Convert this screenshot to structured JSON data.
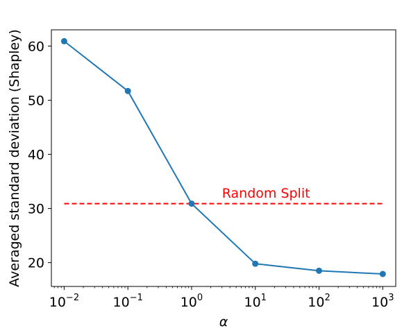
{
  "chart_data": {
    "type": "line",
    "x_scale": "log",
    "xlabel": "α",
    "ylabel": "Averaged standard deviation (Shapley)",
    "xlim": [
      0.0063,
      1600
    ],
    "ylim": [
      15.6,
      63.0
    ],
    "x_tick_values": [
      0.01,
      0.1,
      1,
      10,
      100,
      1000
    ],
    "x_tick_labels": [
      {
        "base": "10",
        "exp": "−2"
      },
      {
        "base": "10",
        "exp": "−1"
      },
      {
        "base": "10",
        "exp": "0"
      },
      {
        "base": "10",
        "exp": "1"
      },
      {
        "base": "10",
        "exp": "2"
      },
      {
        "base": "10",
        "exp": "3"
      }
    ],
    "y_ticks": [
      20,
      30,
      40,
      50,
      60
    ],
    "y_tick_labels": [
      "20",
      "30",
      "40",
      "50",
      "60"
    ],
    "grid": false,
    "series": [
      {
        "x": [
          0.01,
          0.1,
          1,
          10,
          100,
          1000
        ],
        "y": [
          60.9,
          51.7,
          30.9,
          19.8,
          18.5,
          17.9
        ],
        "color": "#1f77b4",
        "marker": "circle"
      }
    ],
    "reference_line": {
      "y": 30.9,
      "x_range": [
        0.01,
        1000
      ],
      "style": "dashed",
      "color": "#ff0000",
      "label": "Random Split",
      "label_x": 3,
      "label_y": 32.0
    }
  }
}
